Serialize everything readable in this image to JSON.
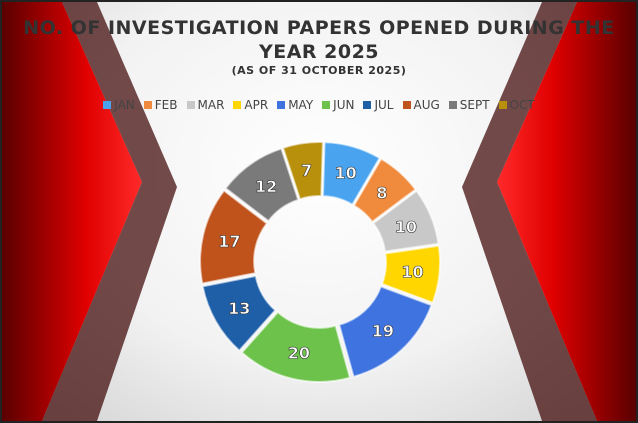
{
  "chart_data": {
    "type": "pie",
    "subtype": "donut",
    "title": "NO. OF INVESTIGATION PAPERS OPENED DURING THE YEAR 2025",
    "subtitle": "(AS OF 31 OCTOBER 2025)",
    "categories": [
      "JAN",
      "FEB",
      "MAR",
      "APR",
      "MAY",
      "JUN",
      "JUL",
      "AUG",
      "SEPT",
      "OCT"
    ],
    "values": [
      10,
      8,
      10,
      10,
      19,
      20,
      13,
      17,
      12,
      7
    ],
    "colors": [
      "#4aa3ef",
      "#f08a3c",
      "#c8c8c8",
      "#ffd600",
      "#3f74e0",
      "#6cc24a",
      "#1f5fa8",
      "#c0531c",
      "#7a7a7a",
      "#b8900c"
    ],
    "legend_position": "top",
    "data_labels": true
  },
  "theme": {
    "accent": "#e00000",
    "dark": "#3a0000"
  }
}
